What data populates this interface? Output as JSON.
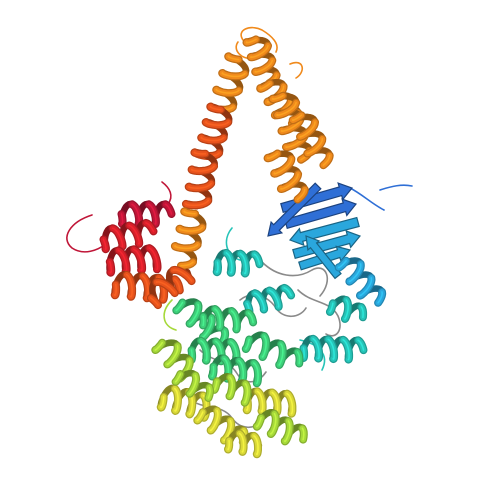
{
  "image": {
    "subject": "protein-ribbon-cartoon",
    "background": "#ffffff",
    "palette": {
      "blue": "#2f6fd6",
      "sky": "#2aa7dd",
      "cyan": "#26c4b8",
      "green": "#3ed07a",
      "lime": "#a6d93a",
      "yellow": "#d9d838",
      "orange": "#f08a1c",
      "dark-orange": "#e8531c",
      "red": "#d8202a",
      "crimson": "#c01638",
      "coil": "#8a8a8a"
    }
  }
}
